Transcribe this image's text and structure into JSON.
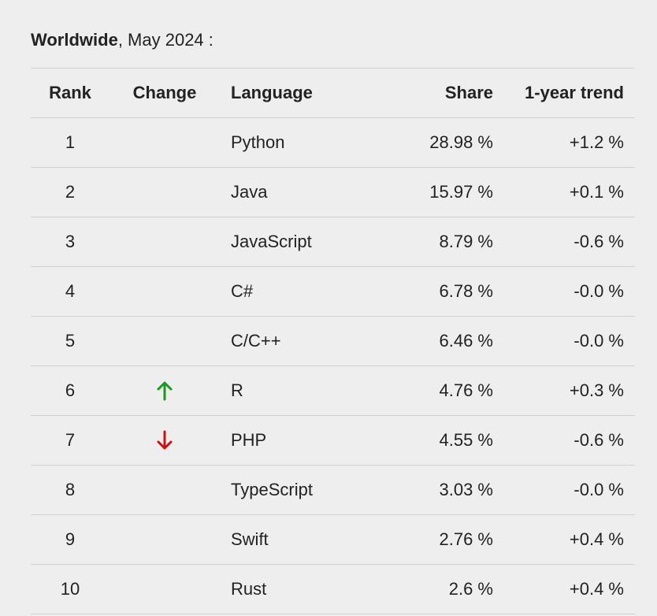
{
  "caption": {
    "region": "Worldwide",
    "rest": ", May 2024 :"
  },
  "columns": {
    "rank": "Rank",
    "change": "Change",
    "language": "Language",
    "share": "Share",
    "trend": "1-year trend"
  },
  "rows": [
    {
      "rank": "1",
      "change": "",
      "language": "Python",
      "share": "28.98 %",
      "trend": "+1.2 %"
    },
    {
      "rank": "2",
      "change": "",
      "language": "Java",
      "share": "15.97 %",
      "trend": "+0.1 %"
    },
    {
      "rank": "3",
      "change": "",
      "language": "JavaScript",
      "share": "8.79 %",
      "trend": "-0.6 %"
    },
    {
      "rank": "4",
      "change": "",
      "language": "C#",
      "share": "6.78 %",
      "trend": "-0.0 %"
    },
    {
      "rank": "5",
      "change": "",
      "language": "C/C++",
      "share": "6.46 %",
      "trend": "-0.0 %"
    },
    {
      "rank": "6",
      "change": "up",
      "language": "R",
      "share": "4.76 %",
      "trend": "+0.3 %"
    },
    {
      "rank": "7",
      "change": "down",
      "language": "PHP",
      "share": "4.55 %",
      "trend": "-0.6 %"
    },
    {
      "rank": "8",
      "change": "",
      "language": "TypeScript",
      "share": "3.03 %",
      "trend": "-0.0 %"
    },
    {
      "rank": "9",
      "change": "",
      "language": "Swift",
      "share": "2.76 %",
      "trend": "+0.4 %"
    },
    {
      "rank": "10",
      "change": "",
      "language": "Rust",
      "share": "2.6 %",
      "trend": "+0.4 %"
    }
  ],
  "icons": {
    "up": "arrow-up-icon",
    "down": "arrow-down-icon"
  },
  "colors": {
    "up": "#1a9a1a",
    "down": "#cc1111"
  }
}
